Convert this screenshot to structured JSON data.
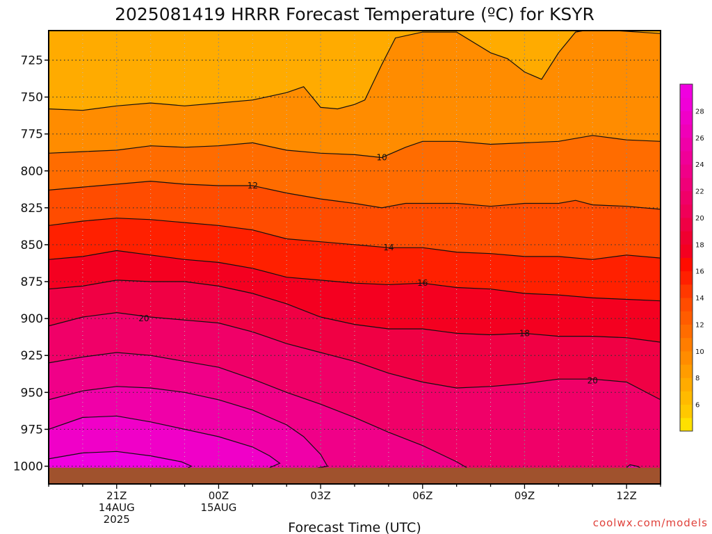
{
  "title": "2025081419 HRRR Forecast Temperature (ºC) for KSYR",
  "credit": "coolwx.com/models",
  "chart_data": {
    "type": "heatmap",
    "title": "2025081419 HRRR Forecast Temperature (ºC) for KSYR",
    "xlabel": "Forecast Time (UTC)",
    "ylabel": "",
    "x_ticks": [
      {
        "hour": 2,
        "lines": [
          "21Z",
          "14AUG",
          "2025"
        ]
      },
      {
        "hour": 5,
        "lines": [
          "00Z",
          "15AUG"
        ]
      },
      {
        "hour": 8,
        "lines": [
          "03Z"
        ]
      },
      {
        "hour": 11,
        "lines": [
          "06Z"
        ]
      },
      {
        "hour": 14,
        "lines": [
          "09Z"
        ]
      },
      {
        "hour": 17,
        "lines": [
          "12Z"
        ]
      }
    ],
    "x_range_hours": [
      0,
      18
    ],
    "y_ticks": [
      725,
      750,
      775,
      800,
      825,
      850,
      875,
      900,
      925,
      950,
      975,
      1000
    ],
    "y_range_hpa": [
      705,
      1012
    ],
    "grid": true,
    "colorbar": {
      "labels": [
        6,
        8,
        10,
        12,
        14,
        16,
        18,
        20,
        22,
        24,
        26,
        28
      ],
      "range": [
        4,
        30
      ],
      "step": 1,
      "colors": [
        "#ffe000",
        "#ffc800",
        "#ffba00",
        "#ffab00",
        "#ff9c00",
        "#ff8c00",
        "#ff7d00",
        "#ff6c00",
        "#ff5c00",
        "#ff4c00",
        "#ff3800",
        "#ff2000",
        "#ff0c00",
        "#f40020",
        "#f00030",
        "#f00044",
        "#f00058",
        "#f00068",
        "#f00078",
        "#f00088",
        "#f00098",
        "#f000a8",
        "#f000b8",
        "#f000c8",
        "#f000d8",
        "#f000e0"
      ]
    },
    "ground_level_hpa": 1001,
    "ground_color": "#a0522d",
    "contour_labels": [
      {
        "value": 10,
        "hour": 9.8,
        "p": 791
      },
      {
        "value": 12,
        "hour": 6,
        "p": 810
      },
      {
        "value": 14,
        "hour": 10,
        "p": 852
      },
      {
        "value": 16,
        "hour": 11,
        "p": 876
      },
      {
        "value": 18,
        "hour": 14,
        "p": 910
      },
      {
        "value": 20,
        "hour": 2.8,
        "p": 900
      },
      {
        "value": 20,
        "hour": 16,
        "p": 942
      }
    ],
    "contours": [
      {
        "value": 8,
        "points": [
          [
            0,
            758
          ],
          [
            1,
            759
          ],
          [
            2,
            756
          ],
          [
            3,
            754
          ],
          [
            4,
            756
          ],
          [
            5,
            754
          ],
          [
            6,
            752
          ],
          [
            7,
            747
          ],
          [
            7.5,
            743
          ],
          [
            8,
            757
          ],
          [
            8.5,
            758
          ],
          [
            9,
            755
          ],
          [
            9.3,
            752
          ],
          [
            9.8,
            728
          ],
          [
            10.2,
            710
          ],
          [
            11,
            706
          ],
          [
            12,
            706
          ],
          [
            13,
            720
          ],
          [
            13.5,
            724
          ],
          [
            14,
            733
          ],
          [
            14.5,
            738
          ],
          [
            15,
            720
          ],
          [
            15.5,
            706
          ],
          [
            16,
            704
          ],
          [
            18,
            707
          ]
        ]
      },
      {
        "value": 10,
        "points": [
          [
            0,
            788
          ],
          [
            1,
            787
          ],
          [
            2,
            786
          ],
          [
            3,
            783
          ],
          [
            4,
            784
          ],
          [
            5,
            783
          ],
          [
            6,
            781
          ],
          [
            7,
            786
          ],
          [
            8,
            788
          ],
          [
            9,
            789
          ],
          [
            9.8,
            791
          ],
          [
            10.5,
            784
          ],
          [
            11,
            780
          ],
          [
            12,
            780
          ],
          [
            13,
            782
          ],
          [
            14,
            781
          ],
          [
            15,
            780
          ],
          [
            16,
            776
          ],
          [
            17,
            779
          ],
          [
            18,
            780
          ]
        ]
      },
      {
        "value": 12,
        "points": [
          [
            0,
            813
          ],
          [
            1,
            811
          ],
          [
            2,
            809
          ],
          [
            3,
            807
          ],
          [
            4,
            809
          ],
          [
            5,
            810
          ],
          [
            6,
            810
          ],
          [
            7,
            815
          ],
          [
            8,
            819
          ],
          [
            9,
            822
          ],
          [
            9.8,
            825
          ],
          [
            10.5,
            822
          ],
          [
            11,
            822
          ],
          [
            12,
            822
          ],
          [
            13,
            824
          ],
          [
            14,
            822
          ],
          [
            15,
            822
          ],
          [
            15.5,
            820
          ],
          [
            16,
            823
          ],
          [
            17,
            824
          ],
          [
            18,
            826
          ]
        ]
      },
      {
        "value": 14,
        "points": [
          [
            0,
            837
          ],
          [
            1,
            834
          ],
          [
            2,
            832
          ],
          [
            3,
            833
          ],
          [
            4,
            835
          ],
          [
            5,
            837
          ],
          [
            6,
            840
          ],
          [
            7,
            846
          ],
          [
            8,
            848
          ],
          [
            9,
            850
          ],
          [
            10,
            852
          ],
          [
            11,
            852
          ],
          [
            12,
            855
          ],
          [
            13,
            856
          ],
          [
            14,
            858
          ],
          [
            15,
            858
          ],
          [
            16,
            860
          ],
          [
            17,
            857
          ],
          [
            18,
            859
          ]
        ]
      },
      {
        "value": 16,
        "points": [
          [
            0,
            860
          ],
          [
            1,
            858
          ],
          [
            2,
            854
          ],
          [
            3,
            857
          ],
          [
            4,
            860
          ],
          [
            5,
            862
          ],
          [
            6,
            866
          ],
          [
            7,
            872
          ],
          [
            8,
            874
          ],
          [
            9,
            876
          ],
          [
            10,
            877
          ],
          [
            11,
            876
          ],
          [
            12,
            879
          ],
          [
            13,
            880
          ],
          [
            14,
            883
          ],
          [
            15,
            884
          ],
          [
            16,
            886
          ],
          [
            17,
            887
          ],
          [
            18,
            888
          ]
        ]
      },
      {
        "value": 18,
        "points": [
          [
            0,
            880
          ],
          [
            1,
            878
          ],
          [
            2,
            874
          ],
          [
            3,
            875
          ],
          [
            4,
            875
          ],
          [
            5,
            878
          ],
          [
            6,
            883
          ],
          [
            7,
            890
          ],
          [
            8,
            899
          ],
          [
            9,
            904
          ],
          [
            10,
            907
          ],
          [
            11,
            907
          ],
          [
            12,
            910
          ],
          [
            13,
            911
          ],
          [
            14,
            910
          ],
          [
            15,
            912
          ],
          [
            16,
            912
          ],
          [
            17,
            913
          ],
          [
            18,
            916
          ]
        ]
      },
      {
        "value": 20,
        "points": [
          [
            0,
            905
          ],
          [
            1,
            899
          ],
          [
            2,
            896
          ],
          [
            3,
            899
          ],
          [
            4,
            901
          ],
          [
            5,
            903
          ],
          [
            6,
            909
          ],
          [
            7,
            917
          ],
          [
            8,
            923
          ],
          [
            9,
            929
          ],
          [
            10,
            937
          ],
          [
            11,
            943
          ],
          [
            12,
            947
          ],
          [
            13,
            946
          ],
          [
            14,
            944
          ],
          [
            15,
            941
          ],
          [
            16,
            941
          ],
          [
            17,
            943
          ],
          [
            18,
            955
          ]
        ]
      },
      {
        "value": 22,
        "points": [
          [
            0,
            930
          ],
          [
            1,
            926
          ],
          [
            2,
            923
          ],
          [
            3,
            925
          ],
          [
            4,
            929
          ],
          [
            5,
            933
          ],
          [
            6,
            941
          ],
          [
            7,
            950
          ],
          [
            8,
            958
          ],
          [
            9,
            967
          ],
          [
            10,
            977
          ],
          [
            11,
            986
          ],
          [
            12,
            997
          ],
          [
            12.3,
            1001
          ]
        ]
      },
      {
        "value": 24,
        "points": [
          [
            0,
            955
          ],
          [
            1,
            949
          ],
          [
            2,
            946
          ],
          [
            3,
            947
          ],
          [
            4,
            950
          ],
          [
            5,
            955
          ],
          [
            6,
            962
          ],
          [
            7,
            972
          ],
          [
            7.5,
            980
          ],
          [
            8,
            992
          ],
          [
            8.2,
            1000
          ],
          [
            7.7,
            1002
          ]
        ]
      },
      {
        "value": 26,
        "points": [
          [
            0,
            975
          ],
          [
            1,
            967
          ],
          [
            2,
            966
          ],
          [
            3,
            970
          ],
          [
            4,
            975
          ],
          [
            5,
            980
          ],
          [
            6,
            987
          ],
          [
            6.5,
            993
          ],
          [
            6.8,
            998
          ],
          [
            6.5,
            1001
          ]
        ]
      },
      {
        "value": 28,
        "points": [
          [
            0,
            995
          ],
          [
            1,
            991
          ],
          [
            2,
            990
          ],
          [
            3,
            993
          ],
          [
            3.9,
            997
          ],
          [
            4.2,
            1000
          ],
          [
            4.1,
            1001
          ]
        ]
      },
      {
        "value": 24,
        "points": [
          [
            17,
            1001
          ],
          [
            17.1,
            999
          ],
          [
            17.3,
            1000
          ],
          [
            17.4,
            1001
          ]
        ]
      }
    ]
  }
}
